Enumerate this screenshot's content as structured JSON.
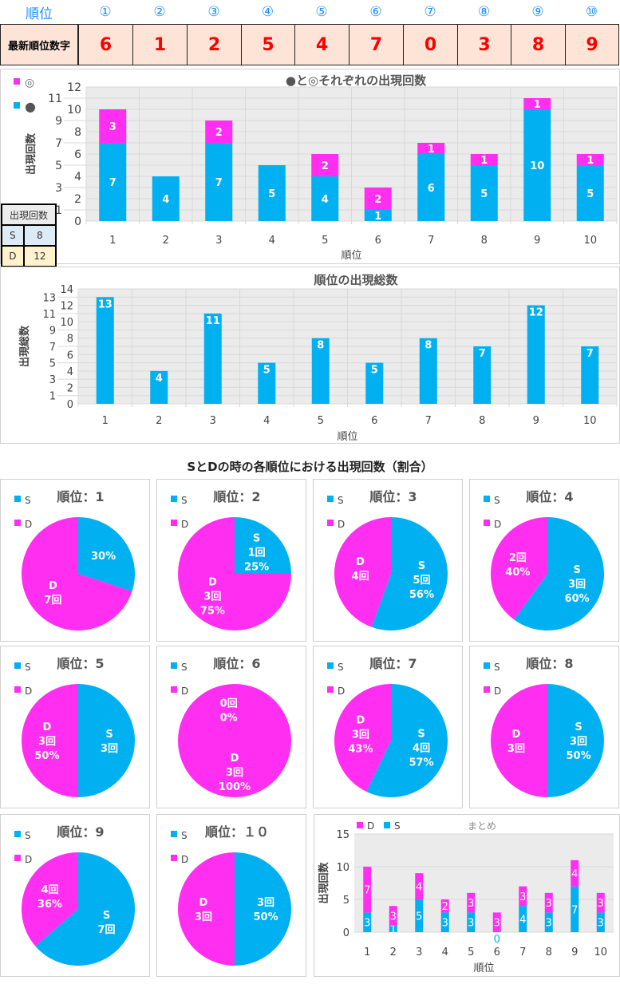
{
  "header": {
    "rank_label": "順位",
    "ranks": [
      "①",
      "②",
      "③",
      "④",
      "⑤",
      "⑥",
      "⑦",
      "⑧",
      "⑨",
      "⑩"
    ],
    "latest_label": "最新順位数字",
    "latest_digits": [
      "6",
      "1",
      "2",
      "5",
      "4",
      "7",
      "0",
      "3",
      "8",
      "9"
    ]
  },
  "colors": {
    "blue": "#00b0f0",
    "magenta": "#ff2ef0",
    "grid": "#d9d9d9",
    "plot_bg": "#ebebeb"
  },
  "count_table": {
    "header": "出現回数",
    "rows": [
      {
        "label": "S",
        "value": "8"
      },
      {
        "label": "D",
        "value": "12"
      }
    ]
  },
  "chart_data": [
    {
      "type": "bar",
      "stacked": true,
      "title": "●と◎それぞれの出現回数",
      "xlabel": "順位",
      "ylabel": "出現回数",
      "ylim": [
        0,
        12
      ],
      "ystep": 1,
      "categories": [
        "1",
        "2",
        "3",
        "4",
        "5",
        "6",
        "7",
        "8",
        "9",
        "10"
      ],
      "legend": [
        "◎",
        "●"
      ],
      "series": [
        {
          "name": "●",
          "values": [
            7,
            4,
            7,
            5,
            4,
            1,
            6,
            5,
            10,
            5
          ]
        },
        {
          "name": "◎",
          "values": [
            3,
            0,
            2,
            0,
            2,
            2,
            1,
            1,
            1,
            1
          ]
        }
      ]
    },
    {
      "type": "bar",
      "title": "順位の出現総数",
      "xlabel": "順位",
      "ylabel": "出現総数",
      "ylim": [
        0,
        14
      ],
      "ystep": 1,
      "categories": [
        "1",
        "2",
        "3",
        "4",
        "5",
        "6",
        "7",
        "8",
        "9",
        "10"
      ],
      "series": [
        {
          "name": "出現総数",
          "values": [
            13,
            4,
            11,
            5,
            8,
            5,
            8,
            7,
            12,
            7
          ]
        }
      ]
    },
    {
      "type": "pie",
      "title": "SとDの時の各順位における出現回数（割合）",
      "legend": [
        "S",
        "D"
      ],
      "unit": "回",
      "pies": [
        {
          "title": "順位：1",
          "S": 3,
          "D": 7,
          "labels": {
            "S": "30%",
            "D": "D\n7回"
          }
        },
        {
          "title": "順位：2",
          "S": 1,
          "D": 3,
          "labels": {
            "S": "S\n1回\n25%",
            "D": "D\n3回\n75%"
          }
        },
        {
          "title": "順位：3",
          "S": 5,
          "D": 4,
          "labels": {
            "S": "S\n5回\n56%",
            "D": "D\n4回"
          }
        },
        {
          "title": "順位：4",
          "S": 3,
          "D": 2,
          "labels": {
            "S": "S\n3回\n60%",
            "D": "2回\n40%"
          }
        },
        {
          "title": "順位：5",
          "S": 3,
          "D": 3,
          "labels": {
            "S": "S\n3回",
            "D": "D\n3回\n50%"
          }
        },
        {
          "title": "順位：6",
          "S": 0,
          "D": 3,
          "labels": {
            "S": "0回\n0%",
            "D": "D\n3回\n100%"
          }
        },
        {
          "title": "順位：7",
          "S": 4,
          "D": 3,
          "labels": {
            "S": "S\n4回\n57%",
            "D": "D\n3回\n43%"
          }
        },
        {
          "title": "順位：8",
          "S": 3,
          "D": 3,
          "labels": {
            "S": "S\n3回\n50%",
            "D": "D\n3回"
          }
        },
        {
          "title": "順位：9",
          "S": 7,
          "D": 4,
          "labels": {
            "S": "S\n7回",
            "D": "4回\n36%"
          }
        },
        {
          "title": "順位：１０",
          "S": 3,
          "D": 3,
          "labels": {
            "S": "3回\n50%",
            "D": "D\n3回"
          }
        }
      ]
    },
    {
      "type": "bar",
      "stacked": true,
      "title": "まとめ",
      "xlabel": "順位",
      "ylabel": "出現回数",
      "ylim": [
        0,
        15
      ],
      "ystep": 5,
      "categories": [
        "1",
        "2",
        "3",
        "4",
        "5",
        "6",
        "7",
        "8",
        "9",
        "10"
      ],
      "legend": [
        "D",
        "S"
      ],
      "series": [
        {
          "name": "S",
          "values": [
            3,
            1,
            5,
            3,
            3,
            0,
            4,
            3,
            7,
            3
          ]
        },
        {
          "name": "D",
          "values": [
            7,
            3,
            4,
            2,
            3,
            3,
            3,
            3,
            4,
            3
          ]
        }
      ]
    }
  ]
}
